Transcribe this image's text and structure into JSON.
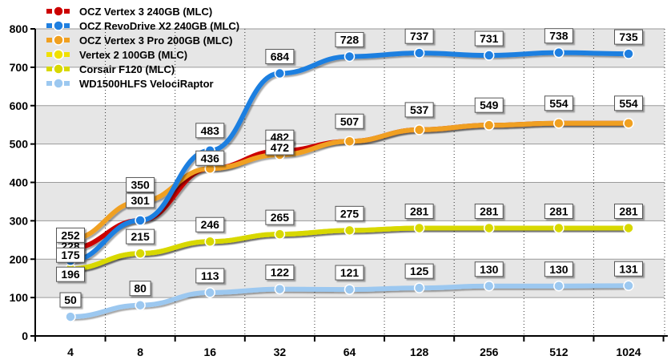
{
  "chart_data": {
    "type": "line",
    "x": [
      "4",
      "8",
      "16",
      "32",
      "64",
      "128",
      "256",
      "512",
      "1024"
    ],
    "ylim": [
      0,
      800
    ],
    "yticks": [
      0,
      100,
      200,
      300,
      400,
      500,
      600,
      700,
      800
    ],
    "grid": true,
    "legend_position": "top-left",
    "series": [
      {
        "name": "OCZ Vertex 3  240GB (MLC)",
        "color": "#cc0000",
        "values": [
          228,
          301,
          436,
          482,
          507,
          537,
          549,
          554,
          554
        ],
        "labels": [
          "228",
          "301",
          "436",
          "482",
          "507",
          "537",
          "549",
          "554",
          "554"
        ]
      },
      {
        "name": "OCZ RevoDrive X2 240GB (MLC)",
        "color": "#1f7fe0",
        "values": [
          196,
          301,
          483,
          684,
          728,
          737,
          731,
          738,
          735
        ],
        "labels": [
          "196",
          "",
          "483",
          "684",
          "728",
          "737",
          "731",
          "738",
          "735"
        ]
      },
      {
        "name": "OCZ Vertex 3 Pro 200GB (MLC)",
        "color": "#f0a020",
        "values": [
          252,
          350,
          436,
          472,
          507,
          537,
          549,
          554,
          554
        ],
        "labels": [
          "252",
          "350",
          "",
          "472",
          "",
          "",
          "",
          "",
          ""
        ]
      },
      {
        "name": "Vertex 2 100GB (MLC)",
        "color": "#f0e000",
        "values": [
          175,
          215,
          246,
          265,
          275,
          281,
          281,
          281,
          281
        ],
        "labels": [
          "175",
          "215",
          "246",
          "265",
          "275",
          "281",
          "281",
          "281",
          "281"
        ]
      },
      {
        "name": "Corsair F120 (MLC)",
        "color": "#d8d800",
        "values": [
          175,
          215,
          246,
          265,
          275,
          281,
          281,
          281,
          281
        ],
        "labels": [
          "",
          "",
          "",
          "",
          "",
          "",
          "",
          "",
          ""
        ]
      },
      {
        "name": "WD1500HLFS VelociRaptor",
        "color": "#9cc8f0",
        "values": [
          50,
          80,
          113,
          122,
          121,
          125,
          130,
          130,
          131
        ],
        "labels": [
          "50",
          "80",
          "113",
          "122",
          "121",
          "125",
          "130",
          "130",
          "131"
        ]
      }
    ]
  }
}
